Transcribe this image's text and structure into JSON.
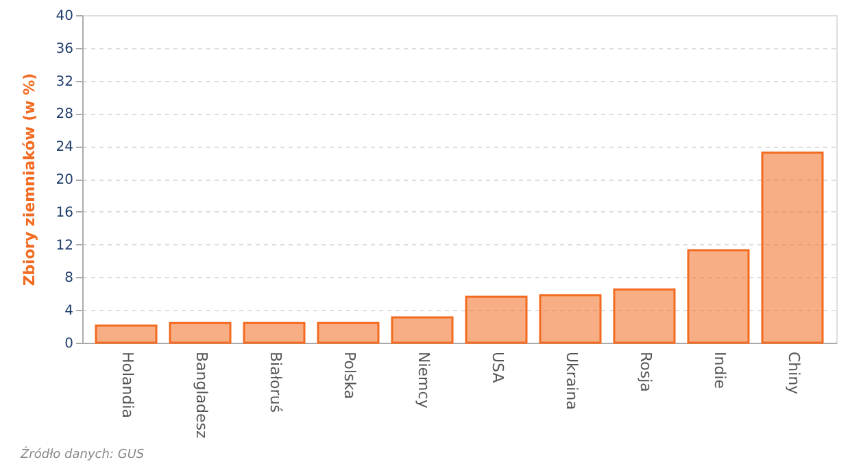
{
  "chart_data": {
    "type": "bar",
    "ylabel": "Zbiory ziemniaków (w %)",
    "categories": [
      "Holandia",
      "Bangladesz",
      "Białoruś",
      "Polska",
      "Niemcy",
      "USA",
      "Ukraina",
      "Rosja",
      "Indie",
      "Chiny"
    ],
    "values": [
      2.1,
      2.4,
      2.4,
      2.4,
      3.1,
      5.6,
      5.8,
      6.5,
      11.3,
      23.2
    ],
    "color": "#f26b21",
    "ylim": [
      0,
      40
    ],
    "yticks": [
      0,
      4,
      8,
      12,
      16,
      20,
      24,
      28,
      32,
      36,
      40
    ],
    "grid": "y",
    "annotations": [
      "Źródło danych: GUS"
    ]
  }
}
